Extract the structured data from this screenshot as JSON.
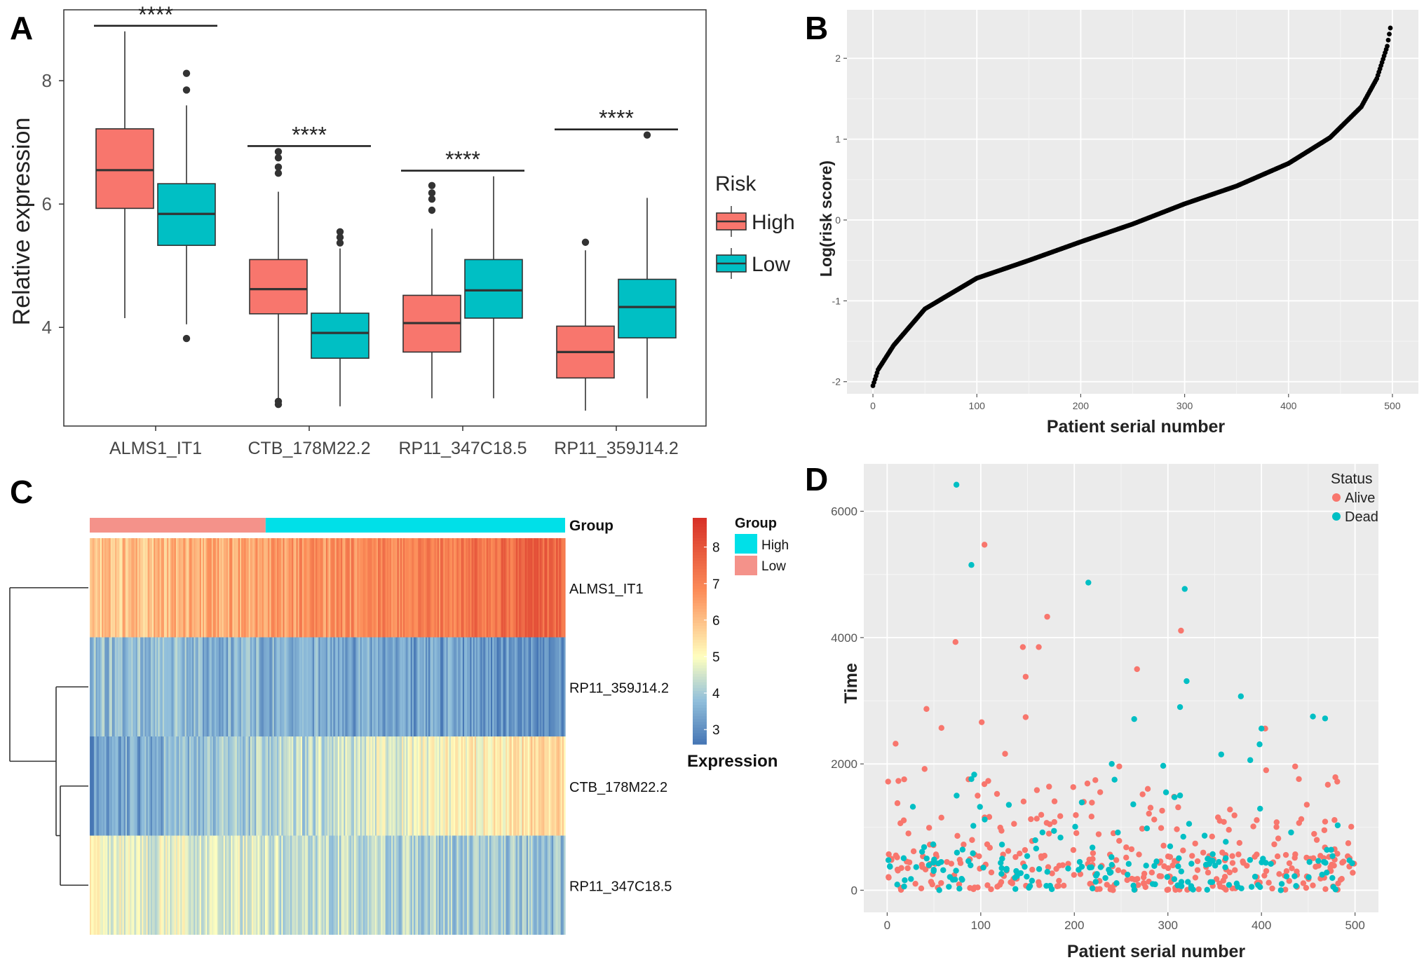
{
  "colors": {
    "high": "#F8766D",
    "low": "#00BFC4",
    "panel_bg": "#EBEBEB",
    "grid": "#FFFFFF",
    "points": "#000000",
    "heat_group_high": "#00E0E8",
    "heat_group_low": "#F4928A"
  },
  "panels": {
    "a": {
      "letter": "A"
    },
    "b": {
      "letter": "B"
    },
    "c": {
      "letter": "C"
    },
    "d": {
      "letter": "D"
    }
  },
  "chart_data": [
    {
      "id": "A",
      "type": "box",
      "title": "",
      "xlabel": "",
      "ylabel": "Relative expression",
      "ylim": [
        2.4,
        9.15
      ],
      "yticks": [
        4,
        6,
        8
      ],
      "categories": [
        "ALMS1_IT1",
        "CTB_178M22.2",
        "RP11_347C18.5",
        "RP11_359J14.2"
      ],
      "legend": {
        "title": "Risk",
        "entries": [
          "High",
          "Low"
        ],
        "position": "right"
      },
      "significance": [
        "****",
        "****",
        "****",
        "****"
      ],
      "series": [
        {
          "name": "High",
          "boxes": [
            {
              "min": 4.15,
              "q1": 5.93,
              "median": 6.55,
              "q3": 7.22,
              "max": 8.8,
              "outliers": []
            },
            {
              "min": 2.85,
              "q1": 4.22,
              "median": 4.62,
              "q3": 5.1,
              "max": 6.2,
              "outliers": [
                6.85,
                6.75,
                6.6,
                6.5,
                2.8,
                2.75
              ]
            },
            {
              "min": 2.85,
              "q1": 3.6,
              "median": 4.07,
              "q3": 4.52,
              "max": 5.6,
              "outliers": [
                6.3,
                6.18,
                6.08,
                5.9
              ]
            },
            {
              "min": 2.65,
              "q1": 3.18,
              "median": 3.6,
              "q3": 4.02,
              "max": 5.25,
              "outliers": [
                5.38
              ]
            }
          ]
        },
        {
          "name": "Low",
          "boxes": [
            {
              "min": 4.05,
              "q1": 5.33,
              "median": 5.84,
              "q3": 6.33,
              "max": 7.6,
              "outliers": [
                8.12,
                7.85,
                3.82
              ]
            },
            {
              "min": 2.72,
              "q1": 3.5,
              "median": 3.91,
              "q3": 4.23,
              "max": 5.28,
              "outliers": [
                5.55,
                5.46,
                5.37
              ]
            },
            {
              "min": 2.85,
              "q1": 4.15,
              "median": 4.6,
              "q3": 5.1,
              "max": 6.45,
              "outliers": []
            },
            {
              "min": 2.85,
              "q1": 3.83,
              "median": 4.33,
              "q3": 4.78,
              "max": 6.1,
              "outliers": [
                7.12
              ]
            }
          ]
        }
      ]
    },
    {
      "id": "B",
      "type": "scatter",
      "title": "",
      "xlabel": "Patient serial number",
      "ylabel": "Log(risk score)",
      "xlim": [
        -25,
        525
      ],
      "ylim": [
        -2.15,
        2.6
      ],
      "xticks": [
        0,
        100,
        200,
        300,
        400,
        500
      ],
      "yticks": [
        -2,
        -1,
        0,
        1,
        2
      ],
      "n": 499,
      "curve_knots": [
        [
          0,
          -2.05
        ],
        [
          5,
          -1.85
        ],
        [
          20,
          -1.55
        ],
        [
          50,
          -1.1
        ],
        [
          100,
          -0.72
        ],
        [
          150,
          -0.5
        ],
        [
          200,
          -0.27
        ],
        [
          250,
          -0.05
        ],
        [
          300,
          0.2
        ],
        [
          350,
          0.42
        ],
        [
          400,
          0.7
        ],
        [
          440,
          1.02
        ],
        [
          470,
          1.4
        ],
        [
          485,
          1.75
        ],
        [
          495,
          2.15
        ],
        [
          499,
          2.45
        ]
      ],
      "grid": true
    },
    {
      "id": "C",
      "type": "heatmap",
      "title": "",
      "rows": [
        "ALMS1_IT1",
        "RP11_359J14.2",
        "CTB_178M22.2",
        "RP11_347C18.5"
      ],
      "group_label": "Group",
      "group_split": [
        0.37,
        0.63
      ],
      "group_order": [
        "Low",
        "High"
      ],
      "columns": 320,
      "row_mean_ranges": [
        [
          5.8,
          7.7
        ],
        [
          3.8,
          3.1
        ],
        [
          3.2,
          5.6
        ],
        [
          4.9,
          3.8
        ]
      ],
      "color_scale": {
        "min": 2.6,
        "max": 8.8,
        "ticks": [
          3,
          4,
          5,
          6,
          7,
          8
        ],
        "label": "Expression"
      },
      "legend": {
        "title": "Group",
        "entries": [
          "High",
          "Low"
        ]
      }
    },
    {
      "id": "D",
      "type": "scatter",
      "title": "",
      "xlabel": "Patient serial number",
      "ylabel": "Time",
      "xlim": [
        -25,
        525
      ],
      "ylim": [
        -350,
        6750
      ],
      "xticks": [
        0,
        100,
        200,
        300,
        400,
        500
      ],
      "yticks": [
        0,
        2000,
        4000,
        6000
      ],
      "legend": {
        "title": "Status",
        "entries": [
          "Alive",
          "Dead"
        ],
        "position": "top-right"
      },
      "highlights": {
        "dead": [
          [
            74,
            6420
          ],
          [
            90,
            5150
          ],
          [
            215,
            4870
          ],
          [
            318,
            4770
          ],
          [
            320,
            3310
          ],
          [
            378,
            3070
          ],
          [
            313,
            2900
          ],
          [
            264,
            2710
          ],
          [
            455,
            2750
          ],
          [
            468,
            2720
          ],
          [
            400,
            2560
          ],
          [
            398,
            2310
          ],
          [
            357,
            2150
          ],
          [
            388,
            2060
          ],
          [
            240,
            2000
          ],
          [
            295,
            1970
          ],
          [
            90,
            1760
          ],
          [
            93,
            1830
          ],
          [
            243,
            1750
          ],
          [
            263,
            1360
          ],
          [
            298,
            1550
          ],
          [
            208,
            1390
          ],
          [
            313,
            1500
          ]
        ],
        "alive": [
          [
            104,
            5470
          ],
          [
            171,
            4330
          ],
          [
            314,
            4110
          ],
          [
            73,
            3930
          ],
          [
            145,
            3850
          ],
          [
            162,
            3850
          ],
          [
            148,
            3380
          ],
          [
            267,
            3500
          ],
          [
            42,
            2870
          ],
          [
            58,
            2570
          ],
          [
            101,
            2660
          ],
          [
            148,
            2740
          ],
          [
            9,
            2320
          ],
          [
            404,
            2560
          ],
          [
            126,
            2160
          ],
          [
            405,
            1900
          ],
          [
            436,
            1960
          ],
          [
            40,
            1920
          ],
          [
            108,
            1730
          ],
          [
            1,
            1720
          ],
          [
            12,
            1730
          ],
          [
            173,
            1640
          ],
          [
            214,
            1690
          ],
          [
            481,
            1720
          ],
          [
            248,
            1960
          ],
          [
            440,
            1760
          ]
        ]
      },
      "n_alive": 330,
      "n_dead": 170,
      "grid": true
    }
  ]
}
